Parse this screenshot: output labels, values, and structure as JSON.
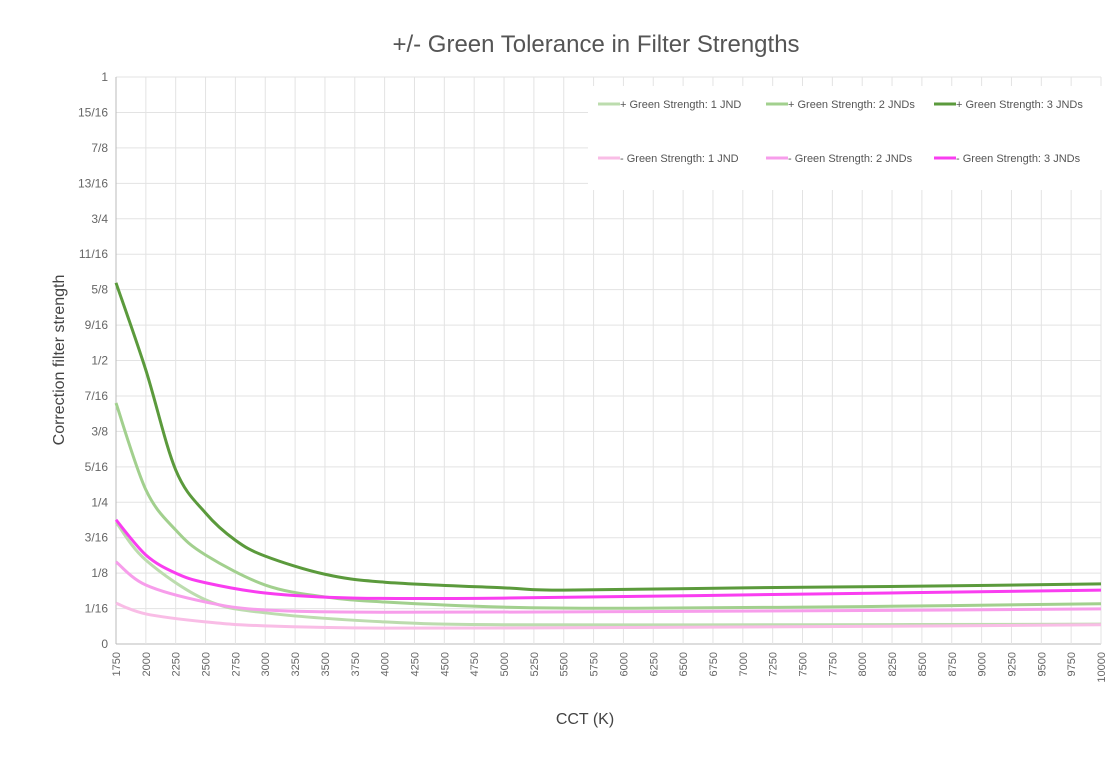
{
  "chart_data": {
    "type": "line",
    "title": "+/- Green Tolerance in Filter Strengths",
    "xlabel": "CCT (K)",
    "ylabel": "Correction filter strength",
    "xlim": [
      1750,
      10000
    ],
    "ylim": [
      0,
      1
    ],
    "x_ticks": [
      1750,
      2000,
      2250,
      2500,
      2750,
      3000,
      3250,
      3500,
      3750,
      4000,
      4250,
      4500,
      4750,
      5000,
      5250,
      5500,
      5750,
      6000,
      6250,
      6500,
      6750,
      7000,
      7250,
      7500,
      7750,
      8000,
      8250,
      8500,
      8750,
      9000,
      9250,
      9500,
      9750,
      10000
    ],
    "y_ticks": [
      "0",
      "1/16",
      "1/8",
      "3/16",
      "1/4",
      "5/16",
      "3/8",
      "7/16",
      "1/2",
      "9/16",
      "5/8",
      "11/16",
      "3/4",
      "13/16",
      "7/8",
      "15/16",
      "1"
    ],
    "grid": true,
    "legend_placement": "top-right",
    "series": [
      {
        "name": "+ Green Strength: 1 JND",
        "color": "#bcdcae",
        "x": [
          1750,
          2000,
          2500,
          3000,
          4000,
          5000,
          7500,
          10000
        ],
        "y": [
          0.215,
          0.148,
          0.078,
          0.055,
          0.039,
          0.034,
          0.034,
          0.035
        ]
      },
      {
        "name": "+ Green Strength: 2 JNDs",
        "color": "#a2d08e",
        "x": [
          1750,
          2000,
          2250,
          2500,
          3000,
          3500,
          4000,
          5000,
          6000,
          8000,
          10000
        ],
        "y": [
          0.425,
          0.272,
          0.201,
          0.157,
          0.104,
          0.083,
          0.074,
          0.065,
          0.063,
          0.066,
          0.071
        ]
      },
      {
        "name": "+ Green Strength: 3 JNDs",
        "color": "#5b9a3c",
        "x": [
          1750,
          2000,
          2250,
          2500,
          2750,
          3000,
          3500,
          4000,
          5000,
          5500,
          7000,
          8500,
          10000
        ],
        "y": [
          0.637,
          0.483,
          0.307,
          0.231,
          0.183,
          0.155,
          0.123,
          0.109,
          0.099,
          0.095,
          0.099,
          0.102,
          0.106
        ]
      },
      {
        "name": "- Green Strength: 1 JND",
        "color": "#f9bde6",
        "x": [
          1750,
          2000,
          2500,
          3000,
          4000,
          6000,
          8000,
          10000
        ],
        "y": [
          0.072,
          0.053,
          0.039,
          0.032,
          0.028,
          0.029,
          0.031,
          0.034
        ]
      },
      {
        "name": "- Green Strength: 2 JNDs",
        "color": "#f79deb",
        "x": [
          1750,
          2000,
          2500,
          3000,
          4000,
          6000,
          8000,
          10000
        ],
        "y": [
          0.145,
          0.104,
          0.074,
          0.06,
          0.056,
          0.057,
          0.059,
          0.062
        ]
      },
      {
        "name": "- Green Strength: 3 JNDs",
        "color": "#f93df0",
        "x": [
          1750,
          2000,
          2250,
          2500,
          3000,
          3750,
          5000,
          7500,
          10000
        ],
        "y": [
          0.219,
          0.157,
          0.125,
          0.108,
          0.09,
          0.081,
          0.081,
          0.088,
          0.095
        ]
      }
    ]
  }
}
